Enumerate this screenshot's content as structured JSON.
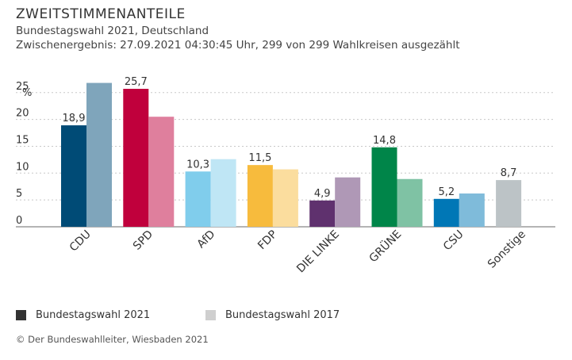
{
  "header": {
    "title": "ZWEITSTIMMENANTEILE",
    "subtitle": "Bundestagswahl 2021, Deutschland",
    "status": "Zwischenergebnis: 27.09.2021 04:30:45 Uhr, 299 von 299 Wahlkreisen ausgezählt"
  },
  "legend": {
    "item_2021": "Bundestagswahl 2021",
    "item_2017": "Bundestagswahl 2017",
    "color_2021": "#333333",
    "color_2017": "#cfcfcf"
  },
  "source": "© Der Bundeswahlleiter, Wiesbaden 2021",
  "chart_data": {
    "type": "bar",
    "title": "ZWEITSTIMMENANTEILE",
    "ylabel": "%",
    "ylim": [
      0,
      27
    ],
    "yticks": [
      0,
      5,
      10,
      15,
      20,
      25
    ],
    "grid": true,
    "legend_position": "bottom",
    "categories": [
      "CDU",
      "SPD",
      "AfD",
      "FDP",
      "DIE LINKE",
      "GRÜNE",
      "CSU",
      "Sonstige"
    ],
    "series": [
      {
        "name": "Bundestagswahl 2021",
        "values": [
          18.9,
          25.7,
          10.3,
          11.5,
          4.9,
          14.8,
          5.2,
          8.7
        ],
        "labels": [
          "18,9",
          "25,7",
          "10,3",
          "11,5",
          "4,9",
          "14,8",
          "5,2",
          "8,7"
        ],
        "colors": [
          "#004b76",
          "#c0003c",
          "#80cdec",
          "#f7bb3d",
          "#5f316e",
          "#008549",
          "#0077b6",
          "#bcc3c6"
        ]
      },
      {
        "name": "Bundestagswahl 2017",
        "values": [
          26.8,
          20.5,
          12.6,
          10.7,
          9.2,
          8.9,
          6.2,
          null
        ],
        "colors": [
          "#7fa5bb",
          "#df7f9d",
          "#bfe6f5",
          "#fbdd9e",
          "#af98b6",
          "#7fc2a4",
          "#7fbbda",
          null
        ]
      }
    ]
  }
}
